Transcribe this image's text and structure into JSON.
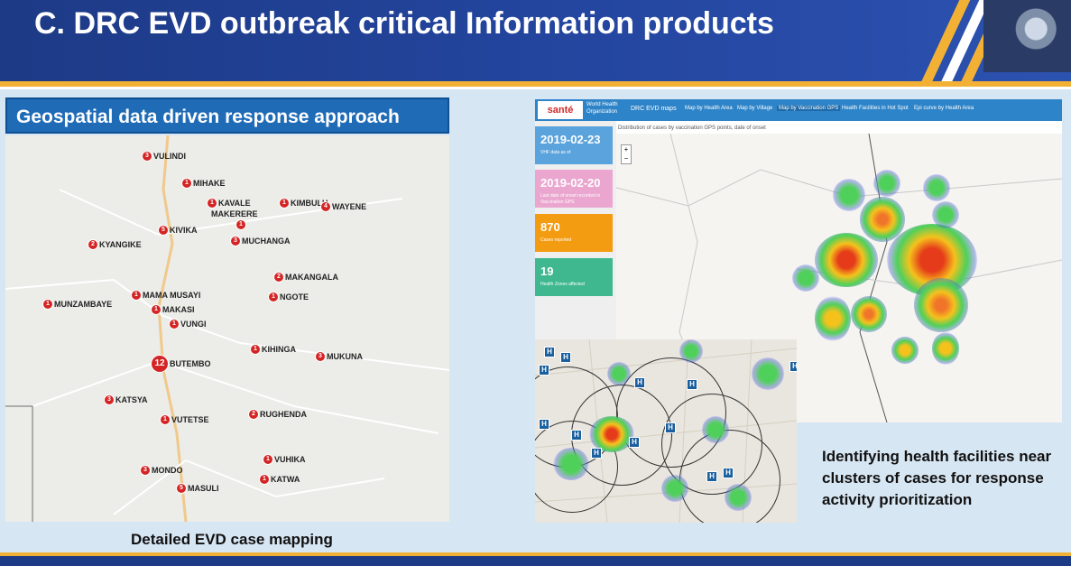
{
  "header": {
    "title": "C. DRC EVD outbreak critical Information products"
  },
  "left_panel": {
    "title": "Geospatial data driven response approach",
    "caption": "Detailed EVD case mapping",
    "markers": [
      {
        "count": "3",
        "label": "VULINDI"
      },
      {
        "count": "1",
        "label": "MIHAKE"
      },
      {
        "count": "1",
        "label": "KAVALE"
      },
      {
        "count": "",
        "label": "MAKERERE"
      },
      {
        "count": "1",
        "label": "KIMBULU"
      },
      {
        "count": "4",
        "label": "WAYENE"
      },
      {
        "count": "5",
        "label": "KIVIKA"
      },
      {
        "count": "1",
        "label": ""
      },
      {
        "count": "3",
        "label": "MUCHANGA"
      },
      {
        "count": "2",
        "label": "KYANGIKE"
      },
      {
        "count": "2",
        "label": "MAKANGALA"
      },
      {
        "count": "1",
        "label": "NGOTE"
      },
      {
        "count": "1",
        "label": "MUNZAMBAYE"
      },
      {
        "count": "1",
        "label": "MAMA MUSAYI"
      },
      {
        "count": "1",
        "label": "MAKASI"
      },
      {
        "count": "1",
        "label": "VUNGI"
      },
      {
        "count": "1",
        "label": "KIHINGA"
      },
      {
        "count": "12",
        "label": "BUTEMBO"
      },
      {
        "count": "3",
        "label": "MUKUNA"
      },
      {
        "count": "3",
        "label": "KATSYA"
      },
      {
        "count": "2",
        "label": "RUGHENDA"
      },
      {
        "count": "1",
        "label": "VUTETSE"
      },
      {
        "count": "1",
        "label": "VUHIKA"
      },
      {
        "count": "3",
        "label": "MONDO"
      },
      {
        "count": "1",
        "label": "KATWA"
      },
      {
        "count": "5",
        "label": "MASULI"
      }
    ]
  },
  "dashboard": {
    "logo": "santé",
    "who": "World Health Organization",
    "app_title": "DRC EVD maps",
    "nav": [
      "Map by Health Area",
      "Map by Village",
      "Map by Vaccination GPS",
      "Health Facilities in Hot Spot",
      "Epi curve by Health Area"
    ],
    "map_caption": "Distribution of cases by vaccination GPS points, date of onset",
    "cards": [
      {
        "value": "2019-02-23",
        "label": "VHF data as of",
        "color": "#5aa3dd"
      },
      {
        "value": "2019-02-20",
        "label": "Last date of onset recorded in Vaccination GPS",
        "color": "#eaa6cf"
      },
      {
        "value": "870",
        "label": "Cases reported",
        "color": "#f39c12"
      },
      {
        "value": "19",
        "label": "Health Zones affected",
        "color": "#3fb88f"
      }
    ],
    "zoom": [
      "+",
      "−"
    ]
  },
  "inset": {
    "facility_symbol": "H"
  },
  "right_caption": "Identifying health facilities near clusters of cases for response activity prioritization"
}
